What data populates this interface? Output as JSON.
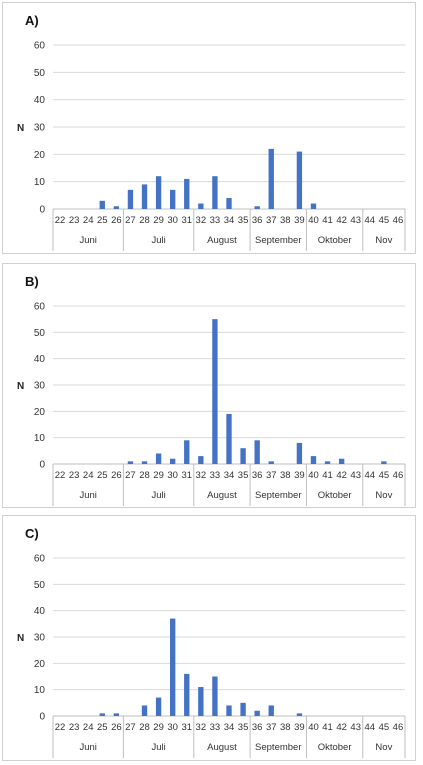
{
  "chart_data": [
    {
      "type": "bar",
      "panel_label": "A)",
      "ylabel": "N",
      "ylim": [
        0,
        60
      ],
      "yticks": [
        0,
        10,
        20,
        30,
        40,
        50,
        60
      ],
      "bar_color": "#4472C4",
      "categories": [
        "22",
        "23",
        "24",
        "25",
        "26",
        "27",
        "28",
        "29",
        "30",
        "31",
        "32",
        "33",
        "34",
        "35",
        "36",
        "37",
        "38",
        "39",
        "40",
        "41",
        "42",
        "43",
        "44",
        "45",
        "46"
      ],
      "values": [
        0,
        0,
        0,
        3,
        1,
        7,
        9,
        12,
        7,
        11,
        2,
        12,
        4,
        0,
        1,
        22,
        0,
        21,
        2,
        0,
        0,
        0,
        0,
        0,
        0
      ],
      "months": [
        {
          "label": "Juni",
          "first": "22",
          "last": "26"
        },
        {
          "label": "Juli",
          "first": "27",
          "last": "31"
        },
        {
          "label": "August",
          "first": "32",
          "last": "35"
        },
        {
          "label": "September",
          "first": "36",
          "last": "39"
        },
        {
          "label": "Oktober",
          "first": "40",
          "last": "43"
        },
        {
          "label": "Nov",
          "first": "44",
          "last": "46"
        }
      ]
    },
    {
      "type": "bar",
      "panel_label": "B)",
      "ylabel": "N",
      "ylim": [
        0,
        60
      ],
      "yticks": [
        0,
        10,
        20,
        30,
        40,
        50,
        60
      ],
      "bar_color": "#4472C4",
      "categories": [
        "22",
        "23",
        "24",
        "25",
        "26",
        "27",
        "28",
        "29",
        "30",
        "31",
        "32",
        "33",
        "34",
        "35",
        "36",
        "37",
        "38",
        "39",
        "40",
        "41",
        "42",
        "43",
        "44",
        "45",
        "46"
      ],
      "values": [
        0,
        0,
        0,
        0,
        0,
        1,
        1,
        4,
        2,
        9,
        3,
        55,
        19,
        6,
        9,
        1,
        0,
        8,
        3,
        1,
        2,
        0,
        0,
        1,
        0
      ],
      "months": [
        {
          "label": "Juni",
          "first": "22",
          "last": "26"
        },
        {
          "label": "Juli",
          "first": "27",
          "last": "31"
        },
        {
          "label": "August",
          "first": "32",
          "last": "35"
        },
        {
          "label": "September",
          "first": "36",
          "last": "39"
        },
        {
          "label": "Oktober",
          "first": "40",
          "last": "43"
        },
        {
          "label": "Nov",
          "first": "44",
          "last": "46"
        }
      ]
    },
    {
      "type": "bar",
      "panel_label": "C)",
      "ylabel": "N",
      "ylim": [
        0,
        60
      ],
      "yticks": [
        0,
        10,
        20,
        30,
        40,
        50,
        60
      ],
      "bar_color": "#4472C4",
      "categories": [
        "22",
        "23",
        "24",
        "25",
        "26",
        "27",
        "28",
        "29",
        "30",
        "31",
        "32",
        "33",
        "34",
        "35",
        "36",
        "37",
        "38",
        "39",
        "40",
        "41",
        "42",
        "43",
        "44",
        "45",
        "46"
      ],
      "values": [
        0,
        0,
        0,
        1,
        1,
        0,
        4,
        7,
        37,
        16,
        11,
        15,
        4,
        5,
        2,
        4,
        0,
        1,
        0,
        0,
        0,
        0,
        0,
        0,
        0
      ],
      "months": [
        {
          "label": "Juni",
          "first": "22",
          "last": "26"
        },
        {
          "label": "Juli",
          "first": "27",
          "last": "31"
        },
        {
          "label": "August",
          "first": "32",
          "last": "35"
        },
        {
          "label": "September",
          "first": "36",
          "last": "39"
        },
        {
          "label": "Oktober",
          "first": "40",
          "last": "43"
        },
        {
          "label": "Nov",
          "first": "44",
          "last": "46"
        }
      ]
    }
  ]
}
